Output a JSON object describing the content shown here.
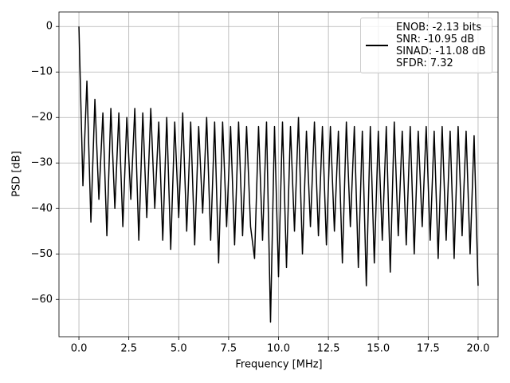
{
  "chart_data": {
    "type": "line",
    "xlabel": "Frequency [MHz]",
    "ylabel": "PSD [dB]",
    "x": [
      0,
      0.2,
      0.4,
      0.6,
      0.8,
      1,
      1.2,
      1.4,
      1.6,
      1.8,
      2,
      2.2,
      2.4,
      2.6,
      2.8,
      3,
      3.2,
      3.4,
      3.6,
      3.8,
      4,
      4.2,
      4.4,
      4.6,
      4.8,
      5,
      5.2,
      5.4,
      5.6,
      5.8,
      6,
      6.2,
      6.4,
      6.6,
      6.8,
      7,
      7.2,
      7.4,
      7.6,
      7.8,
      8,
      8.2,
      8.4,
      8.6,
      8.8,
      9,
      9.2,
      9.4,
      9.6,
      9.8,
      10,
      10.2,
      10.4,
      10.6,
      10.8,
      11,
      11.2,
      11.4,
      11.6,
      11.8,
      12,
      12.2,
      12.4,
      12.6,
      12.8,
      13,
      13.2,
      13.4,
      13.6,
      13.8,
      14,
      14.2,
      14.4,
      14.6,
      14.8,
      15,
      15.2,
      15.4,
      15.6,
      15.8,
      16,
      16.2,
      16.4,
      16.6,
      16.8,
      17,
      17.2,
      17.4,
      17.6,
      17.8,
      18,
      18.2,
      18.4,
      18.6,
      18.8,
      19,
      19.2,
      19.4,
      19.6,
      19.8,
      20
    ],
    "series": [
      {
        "name": "ENOB: -2.13 bits\nSNR: -10.95 dB\nSINAD: -11.08 dB\nSFDR: 7.32",
        "color": "#000000",
        "values": [
          0,
          -35,
          -12,
          -43,
          -16,
          -38,
          -19,
          -46,
          -18,
          -40,
          -19,
          -44,
          -20,
          -38,
          -18,
          -47,
          -19,
          -42,
          -18,
          -40,
          -21,
          -47,
          -20,
          -49,
          -21,
          -42,
          -19,
          -45,
          -21,
          -48,
          -22,
          -41,
          -20,
          -47,
          -21,
          -52,
          -21,
          -44,
          -22,
          -48,
          -21,
          -46,
          -22,
          -44,
          -51,
          -22,
          -47,
          -21,
          -65,
          -22,
          -55,
          -21,
          -53,
          -22,
          -45,
          -20,
          -50,
          -23,
          -44,
          -21,
          -46,
          -22,
          -48,
          -22,
          -45,
          -23,
          -52,
          -21,
          -44,
          -22,
          -53,
          -23,
          -57,
          -22,
          -52,
          -23,
          -47,
          -22,
          -54,
          -21,
          -46,
          -23,
          -48,
          -22,
          -50,
          -23,
          -44,
          -22,
          -47,
          -23,
          -51,
          -22,
          -47,
          -23,
          -51,
          -22,
          -46,
          -23,
          -50,
          -24,
          -57
        ]
      }
    ],
    "xlim": [
      -1,
      21
    ],
    "ylim": [
      -68.2,
      3.2
    ],
    "xticks": [
      {
        "value": 0,
        "label": "0.0"
      },
      {
        "value": 2.5,
        "label": "2.5"
      },
      {
        "value": 5,
        "label": "5.0"
      },
      {
        "value": 7.5,
        "label": "7.5"
      },
      {
        "value": 10,
        "label": "10.0"
      },
      {
        "value": 12.5,
        "label": "12.5"
      },
      {
        "value": 15,
        "label": "15.0"
      },
      {
        "value": 17.5,
        "label": "17.5"
      },
      {
        "value": 20,
        "label": "20.0"
      }
    ],
    "yticks": [
      0,
      {
        "value": -10,
        "label": "−10"
      },
      {
        "value": -20,
        "label": "−20"
      },
      {
        "value": -30,
        "label": "−30"
      },
      {
        "value": -40,
        "label": "−40"
      },
      {
        "value": -50,
        "label": "−50"
      },
      {
        "value": -60,
        "label": "−60"
      }
    ],
    "grid": true,
    "legend": "upper right"
  }
}
